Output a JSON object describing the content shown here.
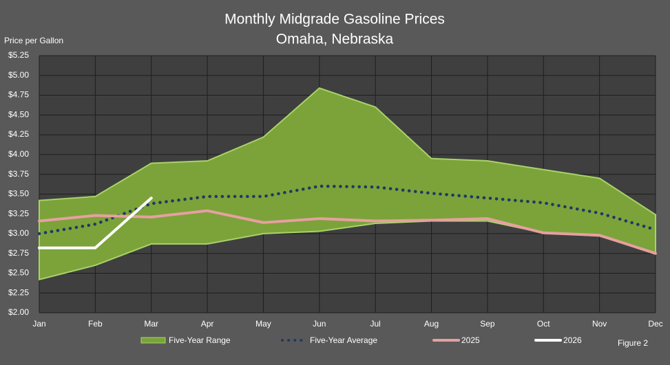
{
  "chart_data": {
    "type": "line",
    "title": "Monthly Midgrade Gasoline Prices",
    "subtitle": "Omaha, Nebraska",
    "y_label": "Price per Gallon",
    "annotation": "Figure 2",
    "categories": [
      "Jan",
      "Feb",
      "Mar",
      "Apr",
      "May",
      "Jun",
      "Jul",
      "Aug",
      "Sep",
      "Oct",
      "Nov",
      "Dec"
    ],
    "ylim": [
      2.0,
      5.25
    ],
    "yticks": [
      {
        "value": 2.0,
        "label": "$2.00"
      },
      {
        "value": 2.25,
        "label": "$2.25"
      },
      {
        "value": 2.5,
        "label": "$2.50"
      },
      {
        "value": 2.75,
        "label": "$2.75"
      },
      {
        "value": 3.0,
        "label": "$3.00"
      },
      {
        "value": 3.25,
        "label": "$3.25"
      },
      {
        "value": 3.5,
        "label": "$3.50"
      },
      {
        "value": 3.75,
        "label": "$3.75"
      },
      {
        "value": 4.0,
        "label": "$4.00"
      },
      {
        "value": 4.25,
        "label": "$4.25"
      },
      {
        "value": 4.5,
        "label": "$4.50"
      },
      {
        "value": 4.75,
        "label": "$4.75"
      },
      {
        "value": 5.0,
        "label": "$5.00"
      },
      {
        "value": 5.25,
        "label": "$5.25"
      }
    ],
    "grid": true,
    "series": [
      {
        "name": "Five-Year Range",
        "color": "#7ba33a",
        "style": "range",
        "high": [
          3.42,
          3.47,
          3.89,
          3.92,
          4.22,
          4.84,
          4.6,
          3.95,
          3.92,
          3.81,
          3.7,
          3.24
        ],
        "low": [
          2.42,
          2.6,
          2.87,
          2.87,
          3.0,
          3.03,
          3.13,
          3.16,
          3.16,
          3.01,
          2.97,
          2.75
        ]
      },
      {
        "name": "Five-Year Average",
        "color": "#1f3864",
        "style": "dotted",
        "values": [
          3.0,
          3.12,
          3.38,
          3.47,
          3.47,
          3.6,
          3.59,
          3.51,
          3.45,
          3.39,
          3.26,
          3.05
        ]
      },
      {
        "name": "2025",
        "color": "#e6a0a0",
        "style": "solid",
        "values": [
          3.16,
          3.23,
          3.21,
          3.29,
          3.14,
          3.19,
          3.16,
          3.17,
          3.19,
          3.01,
          2.98,
          2.75
        ]
      },
      {
        "name": "2026",
        "color": "#ffffff",
        "style": "solid",
        "values": [
          2.82,
          2.82,
          3.45,
          null,
          null,
          null,
          null,
          null,
          null,
          null,
          null,
          null
        ]
      }
    ]
  }
}
